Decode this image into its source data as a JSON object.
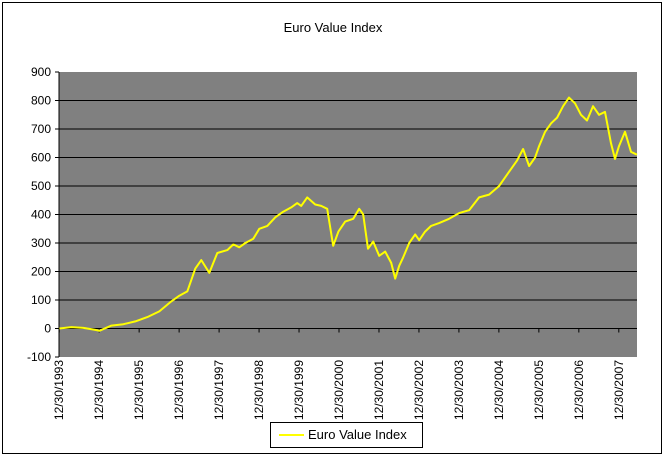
{
  "chart_data": {
    "type": "line",
    "title": "Euro Value Index",
    "xlabel": "",
    "ylabel": "",
    "ylim": [
      -100,
      900
    ],
    "yticks": [
      "-100",
      "0",
      "100",
      "200",
      "300",
      "400",
      "500",
      "600",
      "700",
      "800",
      "900"
    ],
    "xticks": [
      "12/30/1993",
      "12/30/1994",
      "12/30/1995",
      "12/30/1996",
      "12/30/1997",
      "12/30/1998",
      "12/30/1999",
      "12/30/2000",
      "12/30/2001",
      "12/30/2002",
      "12/30/2003",
      "12/30/2004",
      "12/30/2005",
      "12/30/2006",
      "12/30/2007"
    ],
    "xlim": [
      1993.99,
      2008.45
    ],
    "grid": true,
    "legend_position": "bottom",
    "colors": {
      "plot_background": "#808080",
      "line": "#FFFF00",
      "grid": "#000000"
    },
    "series": [
      {
        "name": "Euro Value Index",
        "x": [
          1994.0,
          1994.3,
          1994.6,
          1994.9,
          1995.0,
          1995.3,
          1995.6,
          1995.9,
          1996.2,
          1996.5,
          1996.8,
          1997.0,
          1997.2,
          1997.4,
          1997.55,
          1997.75,
          1997.95,
          1998.2,
          1998.35,
          1998.5,
          1998.65,
          1998.85,
          1999.0,
          1999.2,
          1999.4,
          1999.6,
          1999.8,
          1999.95,
          2000.05,
          2000.2,
          2000.4,
          2000.55,
          2000.7,
          2000.85,
          2000.98,
          2001.15,
          2001.35,
          2001.5,
          2001.6,
          2001.72,
          2001.85,
          2002.0,
          2002.15,
          2002.3,
          2002.4,
          2002.5,
          2002.6,
          2002.75,
          2002.9,
          2003.0,
          2003.15,
          2003.3,
          2003.5,
          2003.75,
          2004.0,
          2004.25,
          2004.5,
          2004.75,
          2005.0,
          2005.15,
          2005.3,
          2005.45,
          2005.6,
          2005.75,
          2005.9,
          2006.0,
          2006.15,
          2006.3,
          2006.45,
          2006.6,
          2006.75,
          2006.9,
          2007.05,
          2007.2,
          2007.35,
          2007.5,
          2007.65,
          2007.8,
          2007.9,
          2008.0,
          2008.15,
          2008.3,
          2008.45
        ],
        "values": [
          0,
          5,
          2,
          -5,
          -8,
          10,
          15,
          25,
          40,
          60,
          95,
          115,
          130,
          210,
          240,
          195,
          265,
          275,
          295,
          285,
          300,
          315,
          350,
          360,
          390,
          410,
          425,
          440,
          430,
          460,
          435,
          430,
          420,
          290,
          340,
          375,
          385,
          420,
          400,
          280,
          305,
          255,
          270,
          230,
          175,
          220,
          250,
          300,
          330,
          310,
          340,
          360,
          370,
          385,
          405,
          415,
          460,
          470,
          500,
          530,
          560,
          590,
          630,
          570,
          600,
          640,
          690,
          720,
          740,
          780,
          810,
          790,
          750,
          730,
          780,
          750,
          760,
          650,
          595,
          640,
          690,
          620,
          610
        ]
      }
    ]
  }
}
